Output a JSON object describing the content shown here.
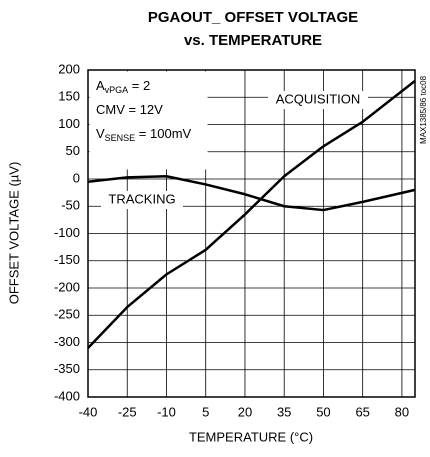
{
  "chart_data": {
    "type": "line",
    "title": [
      "PGAOUT_ OFFSET VOLTAGE",
      "vs. TEMPERATURE"
    ],
    "xlabel": "TEMPERATURE (°C)",
    "ylabel": "OFFSET VOLTAGE (µV)",
    "side_note": "MAX1385/86 toc08",
    "annotations": [
      {
        "text": "A",
        "sub": "vPGA",
        "rest": " = 2"
      },
      {
        "text": "CMV = 12V"
      },
      {
        "text": "V",
        "sub": "SENSE",
        "rest": " = 100mV"
      }
    ],
    "x": [
      -40,
      -25,
      -10,
      5,
      20,
      35,
      50,
      65,
      85
    ],
    "series": [
      {
        "name": "ACQUISITION",
        "color": "#000000",
        "values": [
          -310,
          -235,
          -175,
          -130,
          -65,
          5,
          60,
          105,
          180
        ]
      },
      {
        "name": "TRACKING",
        "color": "#000000",
        "values": [
          -5,
          3,
          5,
          -10,
          -28,
          -50,
          -57,
          -42,
          -20
        ]
      }
    ],
    "xlim": [
      -40,
      85
    ],
    "xticks": [
      -40,
      -25,
      -10,
      5,
      20,
      35,
      50,
      65,
      80
    ],
    "ylim": [
      -400,
      200
    ],
    "yticks": [
      -400,
      -350,
      -300,
      -250,
      -200,
      -150,
      -100,
      -50,
      0,
      50,
      100,
      150,
      200
    ],
    "grid": true
  }
}
